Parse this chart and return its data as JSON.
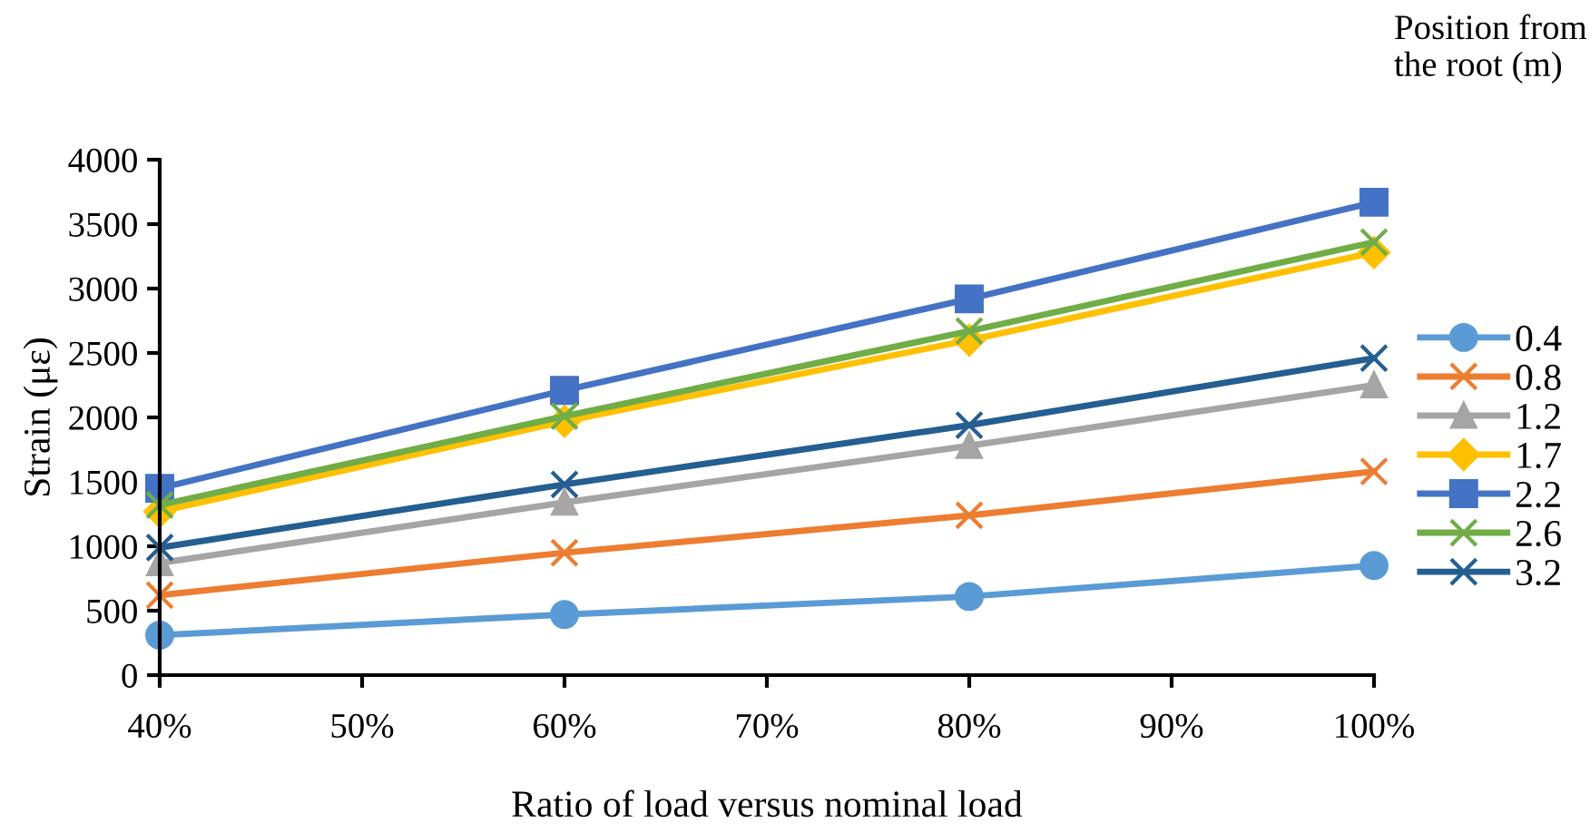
{
  "chart_data": {
    "type": "line",
    "xlabel": "Ratio of load versus nominal load",
    "ylabel": "Strain (με)",
    "legend_title": "Position from the root (m)",
    "legend": "right",
    "grid": false,
    "line_style": "solid",
    "x": [
      40,
      60,
      80,
      100
    ],
    "xlim": [
      40,
      100
    ],
    "xticks": [
      {
        "value": 40,
        "label": "40%"
      },
      {
        "value": 50,
        "label": "50%"
      },
      {
        "value": 60,
        "label": "60%"
      },
      {
        "value": 70,
        "label": "70%"
      },
      {
        "value": 80,
        "label": "80%"
      },
      {
        "value": 90,
        "label": "90%"
      },
      {
        "value": 100,
        "label": "100%"
      }
    ],
    "ylim": [
      0,
      4000
    ],
    "yticks": [
      0,
      500,
      1000,
      1500,
      2000,
      2500,
      3000,
      3500,
      4000
    ],
    "series": [
      {
        "name": "0.4",
        "color": "#5b9bd5",
        "marker": "circle",
        "values": [
          310,
          470,
          610,
          850
        ]
      },
      {
        "name": "0.8",
        "color": "#ed7d31",
        "marker": "cross",
        "values": [
          620,
          950,
          1240,
          1580
        ]
      },
      {
        "name": "1.2",
        "color": "#a5a5a5",
        "marker": "triangle",
        "values": [
          870,
          1340,
          1780,
          2250
        ]
      },
      {
        "name": "1.7",
        "color": "#ffc000",
        "marker": "diamond",
        "values": [
          1270,
          1970,
          2600,
          3280
        ]
      },
      {
        "name": "2.2",
        "color": "#4472c4",
        "marker": "square",
        "values": [
          1450,
          2210,
          2920,
          3670
        ]
      },
      {
        "name": "2.6",
        "color": "#70ad47",
        "marker": "cross",
        "values": [
          1320,
          2010,
          2670,
          3360
        ]
      },
      {
        "name": "3.2",
        "color": "#255e91",
        "marker": "cross",
        "values": [
          990,
          1480,
          1940,
          2460
        ]
      }
    ]
  }
}
